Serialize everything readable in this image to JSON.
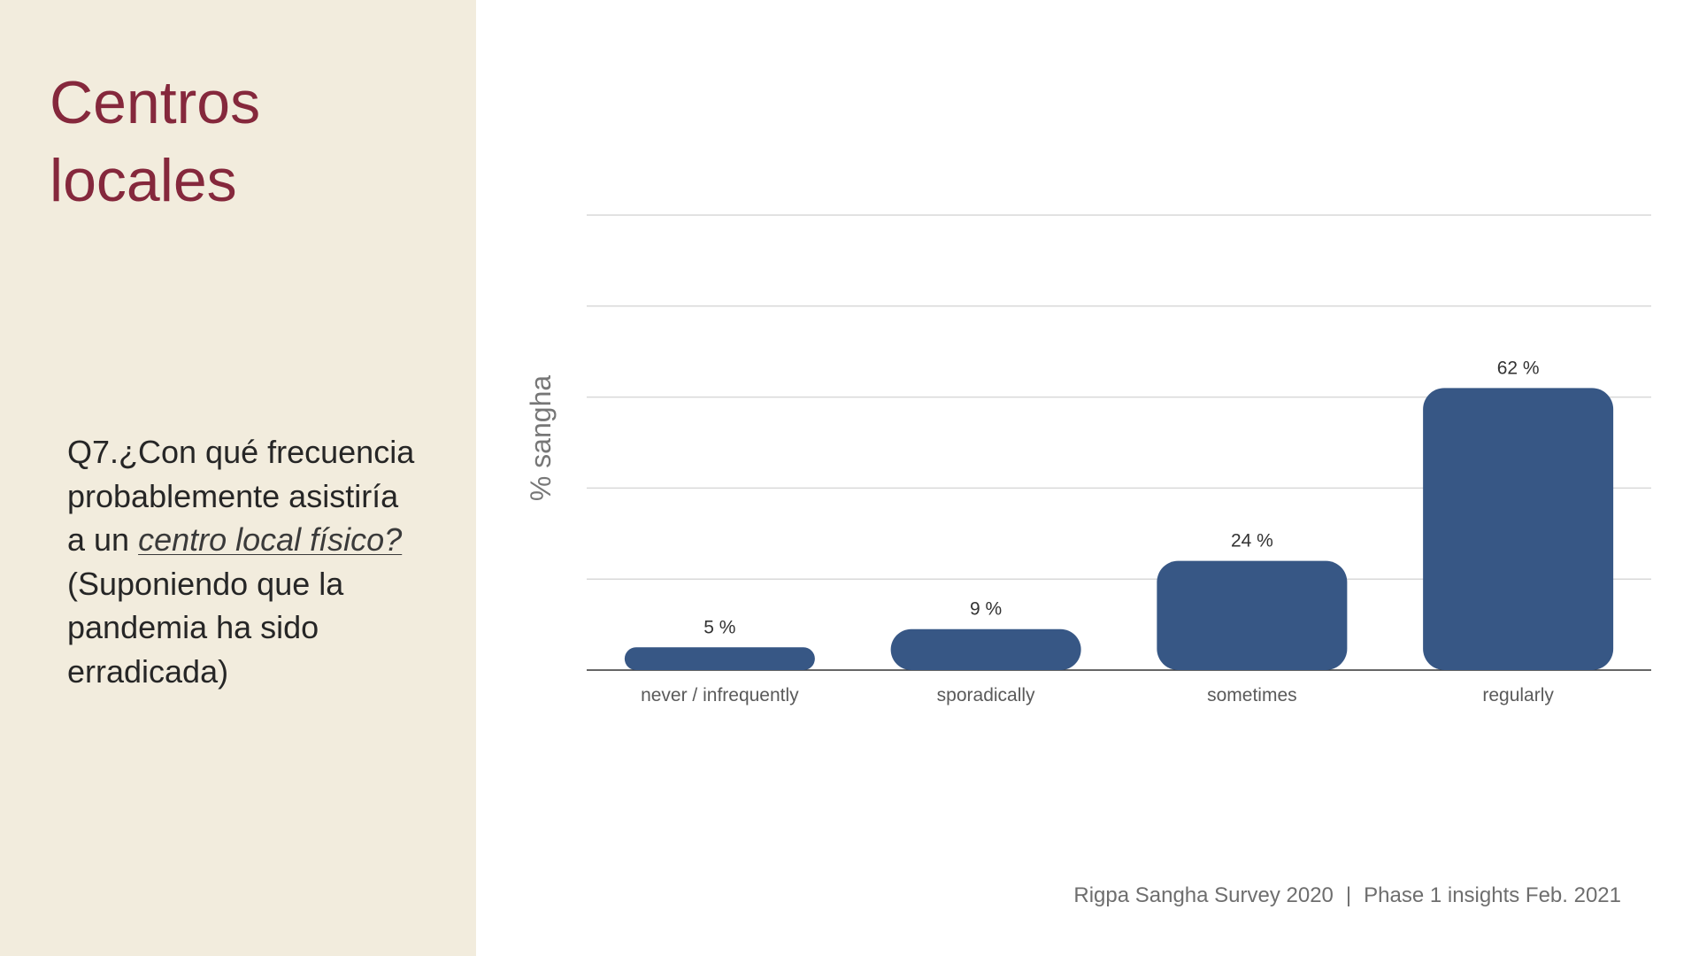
{
  "slide": {
    "title_lines": [
      "Centros",
      "locales"
    ],
    "question": {
      "part1": "Q7.¿Con qué frecuencia probablemente asistiría a un ",
      "link": "centro local físico?",
      "part2": " (Suponiendo que la pandemia ha sido erradicada)"
    },
    "footer": {
      "left": "Rigpa Sangha Survey 2020",
      "separator": "|",
      "right": "Phase 1 insights Feb. 2021"
    }
  },
  "colors": {
    "panel_background": "#f2ecdd",
    "title": "#85283c",
    "bar": "#375785",
    "gridline": "#d9d9d9",
    "baseline": "#333333"
  },
  "chart_data": {
    "type": "bar",
    "title": "",
    "xlabel": "",
    "ylabel": "% sangha",
    "categories": [
      "never / infrequently",
      "sporadically",
      "sometimes",
      "regularly"
    ],
    "values": [
      5,
      9,
      24,
      62
    ],
    "data_labels": [
      "5 %",
      "9 %",
      "24 %",
      "62 %"
    ],
    "ylim": [
      0,
      100
    ],
    "gridlines": [
      20,
      40,
      60,
      80,
      100
    ],
    "grid": true,
    "legend": "none"
  }
}
